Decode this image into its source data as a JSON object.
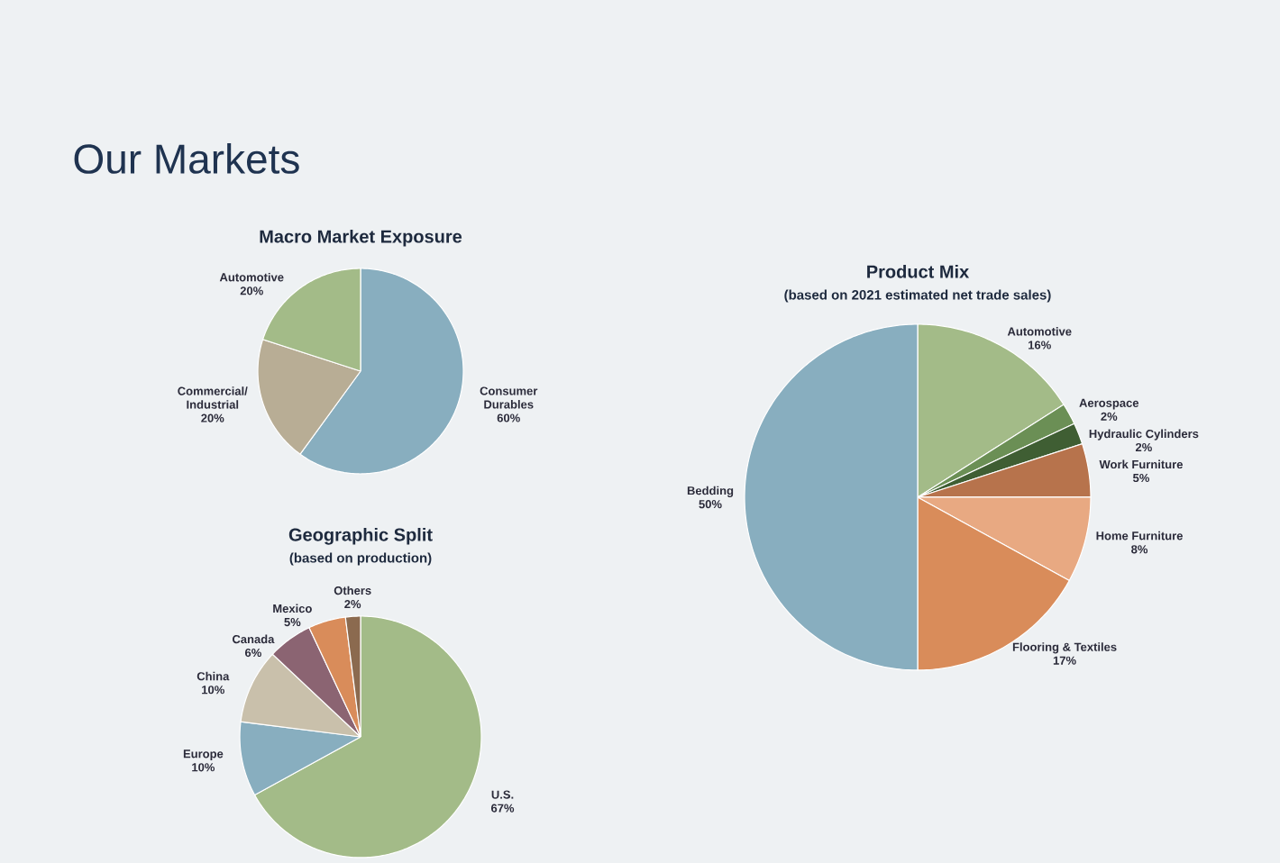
{
  "chart_data": [
    {
      "type": "pie",
      "title": "Macro Market Exposure",
      "annotations": [
        "Our Markets"
      ],
      "categories": [
        "Consumer Durables",
        "Commercial/ Industrial",
        "Automotive"
      ],
      "values": [
        60,
        20,
        20
      ],
      "value_labels": [
        "60%",
        "20%",
        "20%"
      ],
      "colors": [
        "#88aebf",
        "#b8ad95",
        "#a3bb88"
      ]
    },
    {
      "type": "pie",
      "title": "Geographic Split",
      "subtitle": "(based on production)",
      "categories": [
        "U.S.",
        "Europe",
        "China",
        "Canada",
        "Mexico",
        "Others"
      ],
      "values": [
        67,
        10,
        10,
        6,
        5,
        2
      ],
      "value_labels": [
        "67%",
        "10%",
        "10%",
        "6%",
        "5%",
        "2%"
      ],
      "colors": [
        "#a3bb88",
        "#88aebf",
        "#c9c0ab",
        "#8b6472",
        "#d98c5a",
        "#8b6a4f"
      ]
    },
    {
      "type": "pie",
      "title": "Product Mix",
      "subtitle": "(based on 2021 estimated net trade sales)",
      "categories": [
        "Automotive",
        "Aerospace",
        "Hydraulic Cylinders",
        "Work Furniture",
        "Home Furniture",
        "Flooring & Textiles",
        "Bedding"
      ],
      "values": [
        16,
        2,
        2,
        5,
        8,
        17,
        50
      ],
      "value_labels": [
        "16%",
        "2%",
        "2%",
        "5%",
        "8%",
        "17%",
        "50%"
      ],
      "colors": [
        "#a3bb88",
        "#6b8f55",
        "#3f5e33",
        "#b7734c",
        "#e8a982",
        "#d98c5a",
        "#88aebf"
      ]
    }
  ]
}
